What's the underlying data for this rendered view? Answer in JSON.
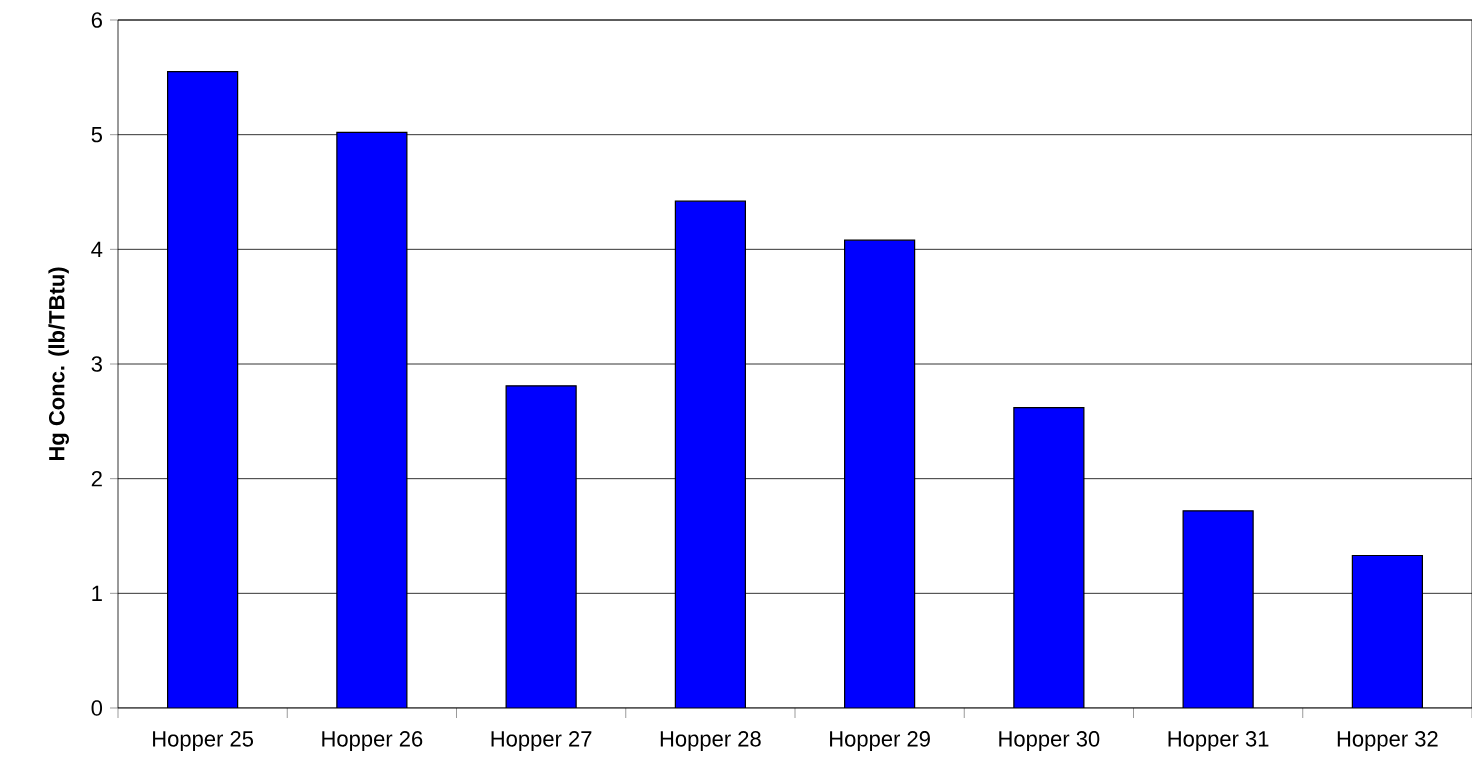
{
  "chart_data": {
    "type": "bar",
    "ylabel": "Hg Conc. (lb/TBtu)",
    "categories": [
      "Hopper 25",
      "Hopper 26",
      "Hopper 27",
      "Hopper 28",
      "Hopper 29",
      "Hopper 30",
      "Hopper 31",
      "Hopper 32"
    ],
    "values": [
      5.55,
      5.02,
      2.81,
      4.42,
      4.08,
      2.62,
      1.72,
      1.33
    ],
    "color": "#0000ff",
    "ylim": [
      0,
      6
    ],
    "yticks": [
      0,
      1,
      2,
      3,
      4,
      5,
      6
    ],
    "grid": "y"
  }
}
